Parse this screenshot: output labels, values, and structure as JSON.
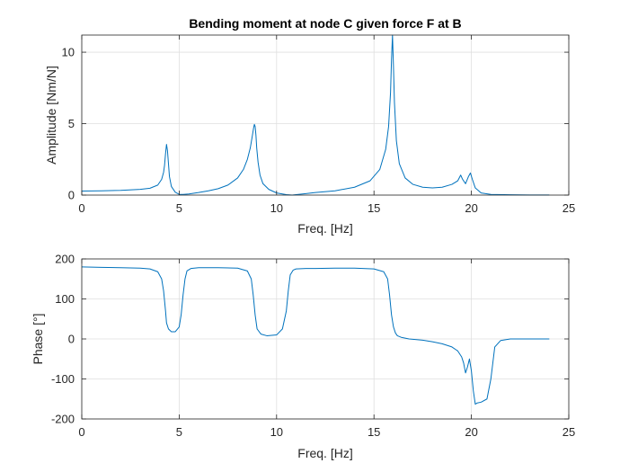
{
  "chart_data": [
    {
      "type": "line",
      "title": "Bending moment at node C given force F at B",
      "xlabel": "Freq. [Hz]",
      "ylabel": "Amplitude [Nm/N]",
      "xlim": [
        0,
        25
      ],
      "ylim": [
        0,
        11.2
      ],
      "xticks": [
        0,
        5,
        10,
        15,
        20,
        25
      ],
      "yticks": [
        0,
        5,
        10
      ],
      "grid": true,
      "color": "#0072BD",
      "series": [
        {
          "x": [
            0,
            1,
            2,
            3,
            3.5,
            3.9,
            4.1,
            4.2,
            4.25,
            4.3,
            4.35,
            4.4,
            4.45,
            4.5,
            4.6,
            4.8,
            5.0,
            5.2,
            5.5,
            6,
            6.5,
            7,
            7.5,
            8,
            8.3,
            8.5,
            8.65,
            8.75,
            8.82,
            8.86,
            8.9,
            8.94,
            8.98,
            9.05,
            9.15,
            9.3,
            9.6,
            10,
            10.5,
            10.8,
            11,
            11.5,
            12,
            13,
            14,
            14.8,
            15.3,
            15.6,
            15.75,
            15.85,
            15.9,
            15.95,
            16.0,
            16.05,
            16.15,
            16.3,
            16.6,
            17,
            17.5,
            18,
            18.5,
            19,
            19.3,
            19.45,
            19.55,
            19.7,
            19.85,
            19.95,
            20.05,
            20.2,
            20.5,
            21,
            22,
            23,
            24
          ],
          "y": [
            0.28,
            0.3,
            0.33,
            0.4,
            0.48,
            0.7,
            1.1,
            1.6,
            2.1,
            2.9,
            3.55,
            3.1,
            2.2,
            1.3,
            0.6,
            0.2,
            0.05,
            0.05,
            0.08,
            0.18,
            0.3,
            0.45,
            0.7,
            1.2,
            1.8,
            2.5,
            3.3,
            4.1,
            4.7,
            4.95,
            4.8,
            4.2,
            3.3,
            2.3,
            1.4,
            0.8,
            0.4,
            0.15,
            0.03,
            0.0,
            0.03,
            0.1,
            0.18,
            0.3,
            0.55,
            1.0,
            1.8,
            3.2,
            4.8,
            7.2,
            9.5,
            11.2,
            9.0,
            6.5,
            3.8,
            2.2,
            1.2,
            0.75,
            0.55,
            0.5,
            0.55,
            0.75,
            1.0,
            1.4,
            1.1,
            0.8,
            1.3,
            1.55,
            1.1,
            0.5,
            0.15,
            0.05,
            0.02,
            0.01,
            0.01
          ]
        }
      ]
    },
    {
      "type": "line",
      "title": "",
      "xlabel": "Freq. [Hz]",
      "ylabel": "Phase [°]",
      "xlim": [
        0,
        25
      ],
      "ylim": [
        -200,
        200
      ],
      "xticks": [
        0,
        5,
        10,
        15,
        20,
        25
      ],
      "yticks": [
        -200,
        -100,
        0,
        100,
        200
      ],
      "grid": true,
      "color": "#0072BD",
      "series": [
        {
          "x": [
            0,
            1,
            2,
            3,
            3.5,
            3.9,
            4.1,
            4.2,
            4.3,
            4.35,
            4.45,
            4.6,
            4.8,
            5.0,
            5.1,
            5.2,
            5.3,
            5.4,
            5.6,
            6,
            7,
            8,
            8.5,
            8.7,
            8.8,
            8.9,
            9.0,
            9.2,
            9.5,
            10.0,
            10.3,
            10.5,
            10.6,
            10.7,
            10.85,
            11.0,
            11.5,
            12,
            13,
            14,
            15,
            15.5,
            15.7,
            15.8,
            15.9,
            16.0,
            16.1,
            16.2,
            16.4,
            16.8,
            17.5,
            18,
            18.5,
            19,
            19.3,
            19.5,
            19.6,
            19.7,
            19.8,
            19.9,
            20.0,
            20.1,
            20.2,
            20.3,
            20.5,
            20.8,
            21.0,
            21.2,
            21.5,
            22,
            23,
            24
          ],
          "y": [
            180,
            179,
            178,
            177,
            175,
            168,
            150,
            120,
            70,
            40,
            25,
            18,
            18,
            30,
            60,
            110,
            150,
            170,
            176,
            178,
            178,
            177,
            170,
            150,
            110,
            60,
            25,
            12,
            8,
            10,
            25,
            70,
            120,
            160,
            172,
            175,
            176,
            176,
            177,
            177,
            175,
            168,
            150,
            110,
            60,
            30,
            15,
            8,
            4,
            0,
            -3,
            -7,
            -12,
            -20,
            -30,
            -45,
            -60,
            -85,
            -70,
            -50,
            -80,
            -130,
            -163,
            -160,
            -158,
            -150,
            -100,
            -20,
            -4,
            0,
            0,
            0
          ]
        }
      ]
    }
  ]
}
